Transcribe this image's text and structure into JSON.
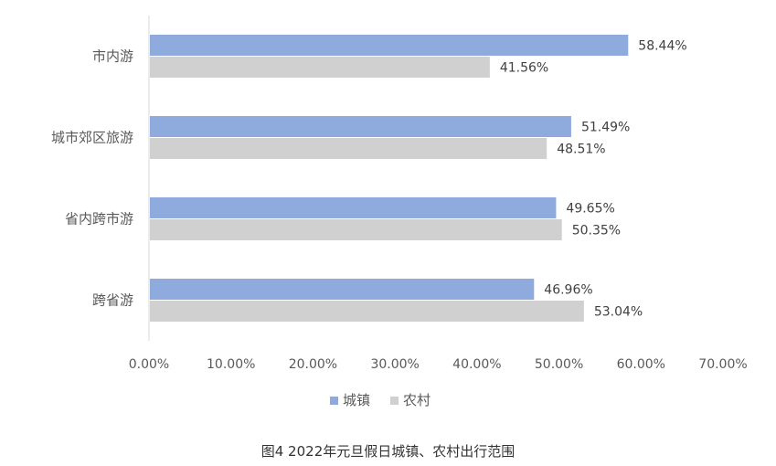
{
  "chart_data": {
    "type": "bar",
    "orientation": "horizontal",
    "categories": [
      "市内游",
      "城市郊区旅游",
      "省内跨市游",
      "跨省游"
    ],
    "series": [
      {
        "name": "城镇",
        "values": [
          58.44,
          51.49,
          49.65,
          46.96
        ],
        "labels": [
          "58.44%",
          "51.49%",
          "49.65%",
          "46.96%"
        ],
        "color": "#8faadc"
      },
      {
        "name": "农村",
        "values": [
          41.56,
          48.51,
          50.35,
          53.04
        ],
        "labels": [
          "41.56%",
          "48.51%",
          "50.35%",
          "53.04%"
        ],
        "color": "#d0d0d0"
      }
    ],
    "x_ticks": [
      "0.00%",
      "10.00%",
      "20.00%",
      "30.00%",
      "40.00%",
      "50.00%",
      "60.00%",
      "70.00%"
    ],
    "xlim": [
      0,
      70
    ],
    "grid": false,
    "legend_position": "bottom",
    "title": ""
  },
  "caption": "图4  2022年元旦假日城镇、农村出行范围"
}
